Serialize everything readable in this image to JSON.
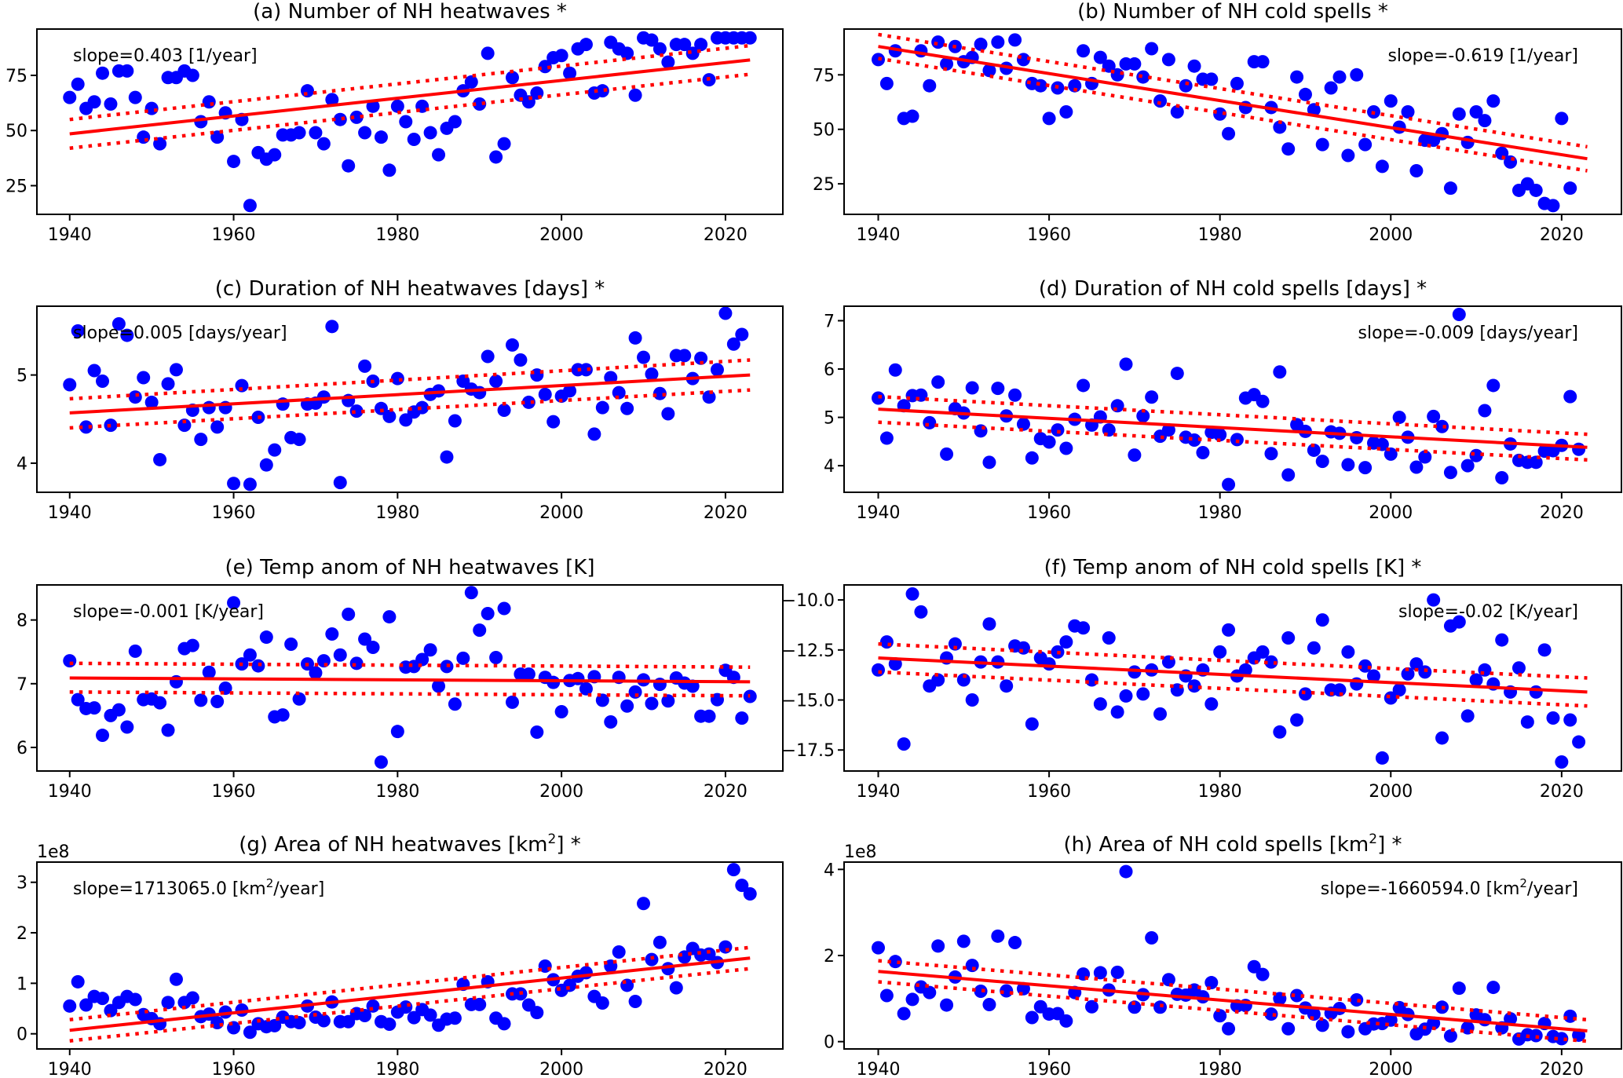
{
  "figure": {
    "panel_count": 8,
    "marker_color": "#0000ff",
    "fit_color": "#ff0000"
  },
  "chart_data": [
    {
      "id": "a",
      "type": "scatter",
      "title": "(a) Number of NH heatwaves *",
      "annotation": "slope=0.403 [1/year]",
      "annotation_anchor": "left",
      "xlabel": "",
      "ylabel": "",
      "xlim": [
        1936,
        2027
      ],
      "ylim": [
        12,
        96
      ],
      "xticks": [
        1940,
        1960,
        1980,
        2000,
        2020
      ],
      "yticks": [
        25,
        50,
        75
      ],
      "ytick_labels": [
        "25",
        "50",
        "75"
      ],
      "offset_text": "",
      "grid": false,
      "x_start": 1940,
      "y": [
        65,
        71,
        60,
        63,
        76,
        62,
        77,
        77,
        65,
        47,
        60,
        44,
        74,
        74,
        77,
        75,
        54,
        63,
        47,
        58,
        36,
        55,
        16,
        40,
        37,
        39,
        48,
        48,
        49,
        68,
        49,
        44,
        64,
        55,
        34,
        56,
        49,
        61,
        47,
        32,
        61,
        54,
        46,
        61,
        49,
        39,
        51,
        54,
        68,
        72,
        62,
        85,
        38,
        44,
        74,
        66,
        63,
        67,
        79,
        83,
        84,
        76,
        87,
        89,
        67,
        68,
        90,
        87,
        85,
        66,
        92,
        91,
        87,
        81,
        89,
        89,
        85,
        89,
        73,
        92,
        92,
        92,
        92,
        92
      ],
      "fit": {
        "x": [
          1940,
          2023
        ],
        "y": [
          48.5,
          82.0
        ]
      },
      "ci_upper": {
        "x": [
          1940,
          2023
        ],
        "y": [
          55.0,
          88.5
        ]
      },
      "ci_lower": {
        "x": [
          1940,
          2023
        ],
        "y": [
          42.0,
          75.5
        ]
      }
    },
    {
      "id": "b",
      "type": "scatter",
      "title": "(b) Number of NH cold spells *",
      "annotation": "slope=-0.619 [1/year]",
      "annotation_anchor": "right",
      "xlabel": "",
      "ylabel": "",
      "xlim": [
        1936,
        2027
      ],
      "ylim": [
        11,
        96
      ],
      "xticks": [
        1940,
        1960,
        1980,
        2000,
        2020
      ],
      "yticks": [
        25,
        50,
        75
      ],
      "ytick_labels": [
        "25",
        "50",
        "75"
      ],
      "offset_text": "",
      "grid": false,
      "x_start": 1940,
      "y": [
        82,
        71,
        86,
        55,
        56,
        86,
        70,
        90,
        80,
        88,
        81,
        83,
        89,
        77,
        90,
        78,
        91,
        82,
        71,
        70,
        55,
        69,
        58,
        70,
        86,
        71,
        83,
        79,
        75,
        80,
        80,
        74,
        87,
        63,
        82,
        58,
        70,
        79,
        73,
        73,
        57,
        48,
        71,
        60,
        81,
        81,
        60,
        51,
        41,
        74,
        66,
        59,
        43,
        69,
        74,
        38,
        75,
        43,
        58,
        33,
        63,
        51,
        58,
        31,
        45,
        45,
        48,
        23,
        57,
        44,
        58,
        54,
        63,
        39,
        35,
        22,
        25,
        22,
        16,
        15,
        55,
        23
      ],
      "fit": {
        "x": [
          1940,
          2023
        ],
        "y": [
          88.0,
          36.5
        ]
      },
      "ci_upper": {
        "x": [
          1940,
          2023
        ],
        "y": [
          93.5,
          42.0
        ]
      },
      "ci_lower": {
        "x": [
          1940,
          2023
        ],
        "y": [
          82.5,
          31.0
        ]
      }
    },
    {
      "id": "c",
      "type": "scatter",
      "title": "(c) Duration of NH heatwaves [days] *",
      "annotation": "slope=0.005 [days/year]",
      "annotation_anchor": "left",
      "xlabel": "",
      "ylabel": "",
      "xlim": [
        1936,
        2027
      ],
      "ylim": [
        3.67,
        5.78
      ],
      "xticks": [
        1940,
        1960,
        1980,
        2000,
        2020
      ],
      "yticks": [
        4,
        5
      ],
      "ytick_labels": [
        "4",
        "5"
      ],
      "offset_text": "",
      "grid": false,
      "x_start": 1940,
      "y": [
        4.89,
        5.5,
        4.41,
        5.05,
        4.93,
        4.43,
        5.58,
        5.45,
        4.75,
        4.97,
        4.69,
        4.04,
        4.9,
        5.06,
        4.43,
        4.6,
        4.27,
        4.63,
        4.41,
        4.63,
        3.77,
        4.88,
        3.76,
        4.52,
        3.98,
        4.15,
        4.67,
        4.29,
        4.27,
        4.67,
        4.68,
        4.75,
        5.55,
        3.78,
        4.71,
        4.59,
        5.1,
        4.93,
        4.62,
        4.53,
        4.96,
        4.49,
        4.58,
        4.63,
        4.78,
        4.82,
        4.07,
        4.48,
        4.93,
        4.84,
        4.8,
        5.21,
        4.93,
        4.6,
        5.34,
        5.17,
        4.69,
        5.0,
        4.78,
        4.47,
        4.76,
        4.82,
        5.06,
        5.06,
        4.33,
        4.63,
        4.97,
        4.8,
        4.62,
        5.42,
        5.2,
        5.01,
        4.79,
        4.56,
        5.22,
        5.22,
        4.96,
        5.19,
        4.75,
        5.06,
        5.7,
        5.35,
        5.46
      ],
      "fit": {
        "x": [
          1940,
          2023
        ],
        "y": [
          4.57,
          5.0
        ]
      },
      "ci_upper": {
        "x": [
          1940,
          2023
        ],
        "y": [
          4.73,
          5.17
        ]
      },
      "ci_lower": {
        "x": [
          1940,
          2023
        ],
        "y": [
          4.4,
          4.83
        ]
      }
    },
    {
      "id": "d",
      "type": "scatter",
      "title": "(d) Duration of NH cold spells [days] *",
      "annotation": "slope=-0.009 [days/year]",
      "annotation_anchor": "right",
      "xlabel": "",
      "ylabel": "",
      "xlim": [
        1936,
        2027
      ],
      "ylim": [
        3.45,
        7.3
      ],
      "xticks": [
        1940,
        1960,
        1980,
        2000,
        2020
      ],
      "yticks": [
        4,
        5,
        6,
        7
      ],
      "ytick_labels": [
        "4",
        "5",
        "6",
        "7"
      ],
      "offset_text": "",
      "grid": false,
      "x_start": 1940,
      "y": [
        5.4,
        4.57,
        5.98,
        5.24,
        5.45,
        5.46,
        4.89,
        5.73,
        4.24,
        5.18,
        5.09,
        5.61,
        4.72,
        4.07,
        5.6,
        5.03,
        5.46,
        4.86,
        4.16,
        4.56,
        4.49,
        4.74,
        4.36,
        4.96,
        5.66,
        4.84,
        5.01,
        4.74,
        5.24,
        6.1,
        4.22,
        5.03,
        5.42,
        4.61,
        4.74,
        5.91,
        4.59,
        4.53,
        4.27,
        4.69,
        4.64,
        3.61,
        4.54,
        5.4,
        5.47,
        5.33,
        4.25,
        5.94,
        3.81,
        4.85,
        4.71,
        4.32,
        4.09,
        4.7,
        4.67,
        4.02,
        4.58,
        3.96,
        4.47,
        4.44,
        4.24,
        5.0,
        4.59,
        3.97,
        4.18,
        5.02,
        4.81,
        3.86,
        7.13,
        4.0,
        4.21,
        5.14,
        5.66,
        3.75,
        4.45,
        4.11,
        4.07,
        4.07,
        4.3,
        4.31,
        4.42,
        5.43,
        4.34
      ],
      "fit": {
        "x": [
          1940,
          2023
        ],
        "y": [
          5.17,
          4.38
        ]
      },
      "ci_upper": {
        "x": [
          1940,
          2023
        ],
        "y": [
          5.43,
          4.65
        ]
      },
      "ci_lower": {
        "x": [
          1940,
          2023
        ],
        "y": [
          4.9,
          4.12
        ]
      }
    },
    {
      "id": "e",
      "type": "scatter",
      "title": "(e) Temp anom of NH heatwaves [K]",
      "annotation": "slope=-0.001 [K/year]",
      "annotation_anchor": "left",
      "xlabel": "",
      "ylabel": "",
      "xlim": [
        1936,
        2027
      ],
      "ylim": [
        5.63,
        8.55
      ],
      "xticks": [
        1940,
        1960,
        1980,
        2000,
        2020
      ],
      "yticks": [
        6,
        7,
        8
      ],
      "ytick_labels": [
        "6",
        "7",
        "8"
      ],
      "offset_text": "",
      "grid": false,
      "x_start": 1940,
      "y": [
        7.36,
        6.75,
        6.61,
        6.62,
        6.19,
        6.5,
        6.59,
        6.32,
        7.51,
        6.75,
        6.76,
        6.7,
        6.27,
        7.03,
        7.55,
        7.6,
        6.74,
        7.18,
        6.72,
        6.93,
        8.27,
        7.31,
        7.45,
        7.28,
        7.73,
        6.48,
        6.51,
        7.62,
        6.76,
        7.31,
        7.17,
        7.36,
        7.78,
        7.45,
        8.09,
        7.32,
        7.7,
        7.57,
        5.77,
        8.05,
        6.25,
        7.26,
        7.27,
        7.38,
        7.53,
        6.96,
        7.27,
        6.68,
        7.4,
        8.43,
        7.84,
        8.1,
        7.41,
        8.18,
        6.71,
        7.15,
        7.15,
        6.24,
        7.1,
        7.02,
        6.56,
        7.05,
        7.08,
        6.92,
        7.11,
        6.74,
        6.4,
        7.1,
        6.65,
        6.87,
        7.06,
        6.69,
        6.99,
        6.73,
        7.09,
        7.01,
        6.96,
        6.49,
        6.49,
        6.75,
        7.21,
        7.1,
        6.46,
        6.8
      ],
      "fit": {
        "x": [
          1940,
          2023
        ],
        "y": [
          7.09,
          7.03
        ]
      },
      "ci_upper": {
        "x": [
          1940,
          2023
        ],
        "y": [
          7.32,
          7.26
        ]
      },
      "ci_lower": {
        "x": [
          1940,
          2023
        ],
        "y": [
          6.87,
          6.81
        ]
      }
    },
    {
      "id": "f",
      "type": "scatter",
      "title": "(f) Temp anom of NH cold spells [K] *",
      "annotation": "slope=-0.02 [K/year]",
      "annotation_anchor": "right",
      "xlabel": "",
      "ylabel": "",
      "xlim": [
        1936,
        2027
      ],
      "ylim": [
        -18.55,
        -9.25
      ],
      "xticks": [
        1940,
        1960,
        1980,
        2000,
        2020
      ],
      "yticks": [
        -17.5,
        -15.0,
        -12.5,
        -10.0
      ],
      "ytick_labels": [
        "−17.5",
        "−15.0",
        "−12.5",
        "−10.0"
      ],
      "offset_text": "",
      "grid": false,
      "x_start": 1940,
      "y": [
        -13.5,
        -12.1,
        -13.2,
        -17.2,
        -9.7,
        -10.6,
        -14.3,
        -14.0,
        -12.9,
        -12.2,
        -14.0,
        -15.0,
        -13.1,
        -11.2,
        -13.1,
        -14.3,
        -12.3,
        -12.4,
        -16.2,
        -12.9,
        -13.2,
        -12.6,
        -12.1,
        -11.3,
        -11.4,
        -14.0,
        -15.2,
        -11.9,
        -15.6,
        -14.8,
        -13.6,
        -14.7,
        -13.5,
        -15.7,
        -13.1,
        -14.5,
        -13.8,
        -14.3,
        -13.5,
        -15.2,
        -12.6,
        -11.5,
        -13.8,
        -13.5,
        -12.9,
        -12.6,
        -13.1,
        -16.6,
        -11.9,
        -16.0,
        -14.7,
        -12.4,
        -11.0,
        -14.5,
        -14.5,
        -12.6,
        -14.2,
        -13.3,
        -13.8,
        -17.9,
        -14.9,
        -14.5,
        -13.7,
        -13.2,
        -13.6,
        -10.0,
        -16.9,
        -11.3,
        -11.1,
        -15.8,
        -14.0,
        -13.5,
        -14.2,
        -12.0,
        -14.6,
        -13.4,
        -16.1,
        -14.6,
        -12.5,
        -15.9,
        -18.1,
        -16.0,
        -17.1
      ],
      "fit": {
        "x": [
          1940,
          2023
        ],
        "y": [
          -12.9,
          -14.6
        ]
      },
      "ci_upper": {
        "x": [
          1940,
          2023
        ],
        "y": [
          -12.2,
          -13.9
        ]
      },
      "ci_lower": {
        "x": [
          1940,
          2023
        ],
        "y": [
          -13.6,
          -15.3
        ]
      }
    },
    {
      "id": "g",
      "type": "scatter",
      "title_main": "(g) Area of NH heatwaves [km",
      "title_sup": "2",
      "title_tail": "] *",
      "annotation_main": "slope=1713065.0 [km",
      "annotation_sup": "2",
      "annotation_tail": "/year]",
      "annotation_anchor": "left",
      "xlabel": "",
      "ylabel": "",
      "xlim": [
        1936,
        2027
      ],
      "ylim": [
        -0.3,
        3.4
      ],
      "xticks": [
        1940,
        1960,
        1980,
        2000,
        2020
      ],
      "yticks": [
        0,
        1,
        2,
        3
      ],
      "ytick_labels": [
        "0",
        "1",
        "2",
        "3"
      ],
      "offset_text": "1e8",
      "y_scale": 100000000,
      "grid": false,
      "x_start": 1940,
      "y": [
        0.55,
        1.03,
        0.57,
        0.74,
        0.7,
        0.46,
        0.62,
        0.74,
        0.68,
        0.38,
        0.3,
        0.2,
        0.62,
        1.08,
        0.62,
        0.71,
        0.34,
        0.39,
        0.22,
        0.43,
        0.12,
        0.47,
        0.03,
        0.2,
        0.14,
        0.16,
        0.33,
        0.24,
        0.22,
        0.55,
        0.33,
        0.26,
        0.63,
        0.24,
        0.24,
        0.4,
        0.36,
        0.55,
        0.24,
        0.19,
        0.43,
        0.53,
        0.32,
        0.48,
        0.37,
        0.17,
        0.29,
        0.31,
        0.98,
        0.58,
        0.58,
        1.03,
        0.31,
        0.2,
        0.79,
        0.79,
        0.57,
        0.42,
        1.34,
        1.07,
        0.86,
        0.96,
        1.14,
        1.21,
        0.74,
        0.61,
        1.34,
        1.62,
        0.96,
        0.64,
        2.58,
        1.47,
        1.81,
        1.29,
        0.91,
        1.52,
        1.69,
        1.56,
        1.58,
        1.41,
        1.72,
        3.25,
        2.94,
        2.77
      ],
      "fit": {
        "x": [
          1940,
          2023
        ],
        "y": [
          0.07,
          1.5
        ]
      },
      "ci_upper": {
        "x": [
          1940,
          2023
        ],
        "y": [
          0.28,
          1.71
        ]
      },
      "ci_lower": {
        "x": [
          1940,
          2023
        ],
        "y": [
          -0.14,
          1.29
        ]
      }
    },
    {
      "id": "h",
      "type": "scatter",
      "title_main": "(h) Area of NH cold spells [km",
      "title_sup": "2",
      "title_tail": "] *",
      "annotation_main": "slope=-1660594.0 [km",
      "annotation_sup": "2",
      "annotation_tail": "/year]",
      "annotation_anchor": "right",
      "xlabel": "",
      "ylabel": "",
      "xlim": [
        1936,
        2027
      ],
      "ylim": [
        -0.17,
        4.17
      ],
      "xticks": [
        1940,
        1960,
        1980,
        2000,
        2020
      ],
      "yticks": [
        0,
        2,
        4
      ],
      "ytick_labels": [
        "0",
        "2",
        "4"
      ],
      "offset_text": "1e8",
      "y_scale": 100000000,
      "grid": false,
      "x_start": 1940,
      "y": [
        2.18,
        1.07,
        1.86,
        0.65,
        0.98,
        1.27,
        1.14,
        2.22,
        0.85,
        1.5,
        2.33,
        1.77,
        1.17,
        0.86,
        2.45,
        1.18,
        2.3,
        1.23,
        0.56,
        0.81,
        0.64,
        0.65,
        0.48,
        1.14,
        1.57,
        0.81,
        1.6,
        1.2,
        1.61,
        3.95,
        0.8,
        1.09,
        2.41,
        0.8,
        1.44,
        1.1,
        1.08,
        1.2,
        1.04,
        1.37,
        0.6,
        0.3,
        0.83,
        0.84,
        1.74,
        1.56,
        0.64,
        1.0,
        0.3,
        1.07,
        0.78,
        0.64,
        0.38,
        0.66,
        0.77,
        0.23,
        0.97,
        0.3,
        0.41,
        0.42,
        0.5,
        0.79,
        0.63,
        0.18,
        0.29,
        0.43,
        0.8,
        0.13,
        1.24,
        0.32,
        0.62,
        0.51,
        1.26,
        0.32,
        0.53,
        0.06,
        0.16,
        0.14,
        0.42,
        0.12,
        0.07,
        0.59,
        0.15
      ],
      "fit": {
        "x": [
          1940,
          2023
        ],
        "y": [
          1.63,
          0.25
        ]
      },
      "ci_upper": {
        "x": [
          1940,
          2023
        ],
        "y": [
          1.88,
          0.51
        ]
      },
      "ci_lower": {
        "x": [
          1940,
          2023
        ],
        "y": [
          1.39,
          0.01
        ]
      }
    }
  ]
}
